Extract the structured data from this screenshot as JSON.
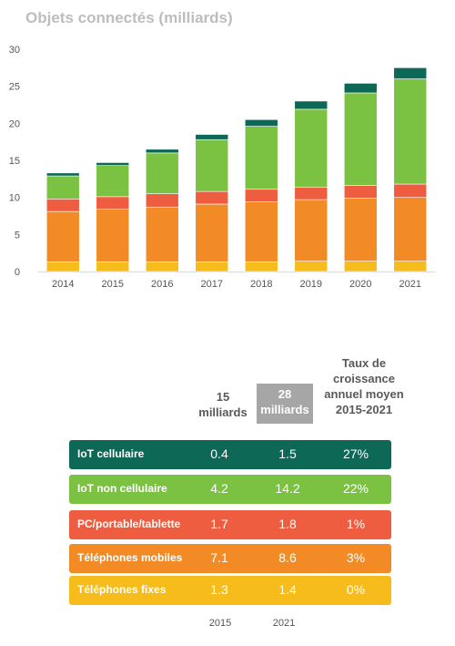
{
  "title": "Objets connectés (milliards)",
  "chart_data": {
    "type": "bar",
    "stacked": true,
    "categories": [
      "2014",
      "2015",
      "2016",
      "2017",
      "2018",
      "2019",
      "2020",
      "2021"
    ],
    "ylim": [
      0,
      30
    ],
    "yticks": [
      "0",
      "5",
      "10",
      "15",
      "20",
      "25",
      "30"
    ],
    "grid": false,
    "series": [
      {
        "name": "Téléphones fixes",
        "color": "#f5bc1c",
        "values": [
          1.3,
          1.3,
          1.3,
          1.3,
          1.3,
          1.4,
          1.4,
          1.4
        ]
      },
      {
        "name": "Téléphones mobiles",
        "color": "#f28b25",
        "values": [
          6.8,
          7.1,
          7.4,
          7.8,
          8.1,
          8.3,
          8.5,
          8.6
        ]
      },
      {
        "name": "PC/portable/tablette",
        "color": "#ef5d40",
        "values": [
          1.7,
          1.7,
          1.8,
          1.7,
          1.7,
          1.7,
          1.7,
          1.8
        ]
      },
      {
        "name": "IoT non cellulaire",
        "color": "#7cc242",
        "values": [
          3.1,
          4.2,
          5.5,
          7.0,
          8.5,
          10.5,
          12.5,
          14.2
        ]
      },
      {
        "name": "IoT cellulaire",
        "color": "#0d6856",
        "values": [
          0.4,
          0.4,
          0.5,
          0.7,
          0.9,
          1.1,
          1.3,
          1.5
        ]
      }
    ]
  },
  "table": {
    "col_2015": "15 milliards",
    "col_2021": "28 milliards",
    "col_growth": "Taux de croissance annuel moyen 2015-2021",
    "rows": [
      {
        "label": "IoT cellulaire",
        "v2015": "0.4",
        "v2021": "1.5",
        "growth": "27%",
        "color": "#0d6856"
      },
      {
        "label": "IoT non cellulaire",
        "v2015": "4.2",
        "v2021": "14.2",
        "growth": "22%",
        "color": "#7cc242"
      },
      {
        "label": "PC/portable/tablette",
        "v2015": "1.7",
        "v2021": "1.8",
        "growth": "1%",
        "color": "#ef5d40"
      },
      {
        "label": "Téléphones mobiles",
        "v2015": "7.1",
        "v2021": "8.6",
        "growth": "3%",
        "color": "#f28b25"
      },
      {
        "label": "Téléphones fixes",
        "v2015": "1.3",
        "v2021": "1.4",
        "growth": "0%",
        "color": "#f5bc1c"
      }
    ],
    "footer_2015": "2015",
    "footer_2021": "2021"
  }
}
